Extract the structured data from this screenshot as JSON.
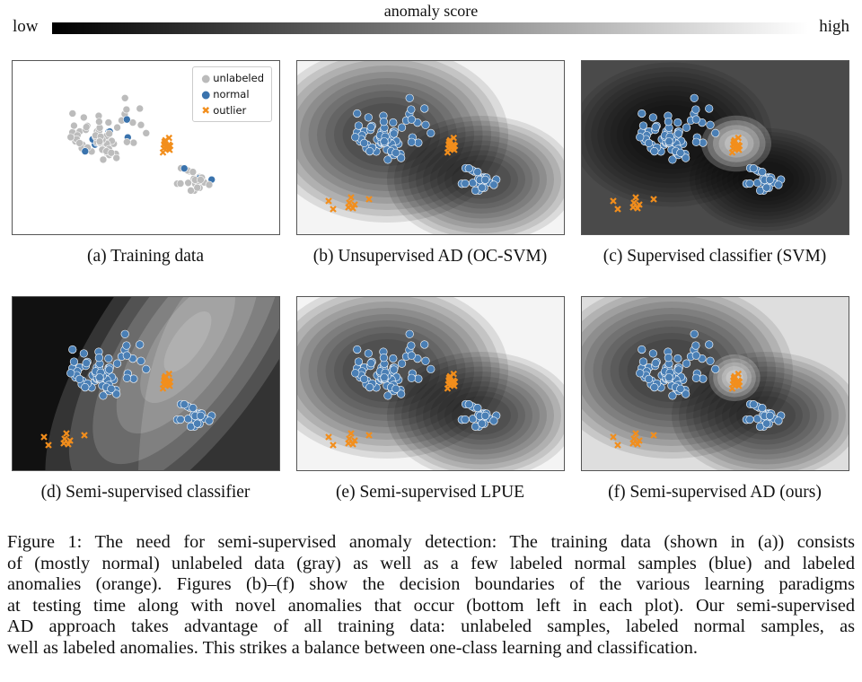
{
  "colorbar": {
    "title": "anomaly score",
    "low": "low",
    "high": "high"
  },
  "legend": [
    "unlabeled",
    "normal",
    "outlier"
  ],
  "panels": [
    {
      "caption": "(a)  Training data"
    },
    {
      "caption": "(b)  Unsupervised AD (OC-SVM)"
    },
    {
      "caption": "(c)  Supervised classifier (SVM)"
    },
    {
      "caption": "(d)  Semi-supervised classifier"
    },
    {
      "caption": "(e)  Semi-supervised LPUE"
    },
    {
      "caption": "(f)  Semi-supervised AD (ours)"
    }
  ],
  "figure_caption": {
    "lines": [
      "Figure 1: The need for semi-supervised anomaly detection: The training data (shown in (a)) consists",
      "of (mostly normal) unlabeled data (gray) as well as a few labeled normal samples (blue) and labeled",
      "anomalies (orange). Figures (b)–(f) show the decision boundaries of the various learning paradigms",
      "at testing time along with novel anomalies that occur (bottom left in each plot). Our semi-supervised",
      "AD approach takes advantage of all training data: unlabeled samples, labeled normal samples, as",
      "well as labeled anomalies. This strikes a balance between one-class learning and classification."
    ]
  }
}
